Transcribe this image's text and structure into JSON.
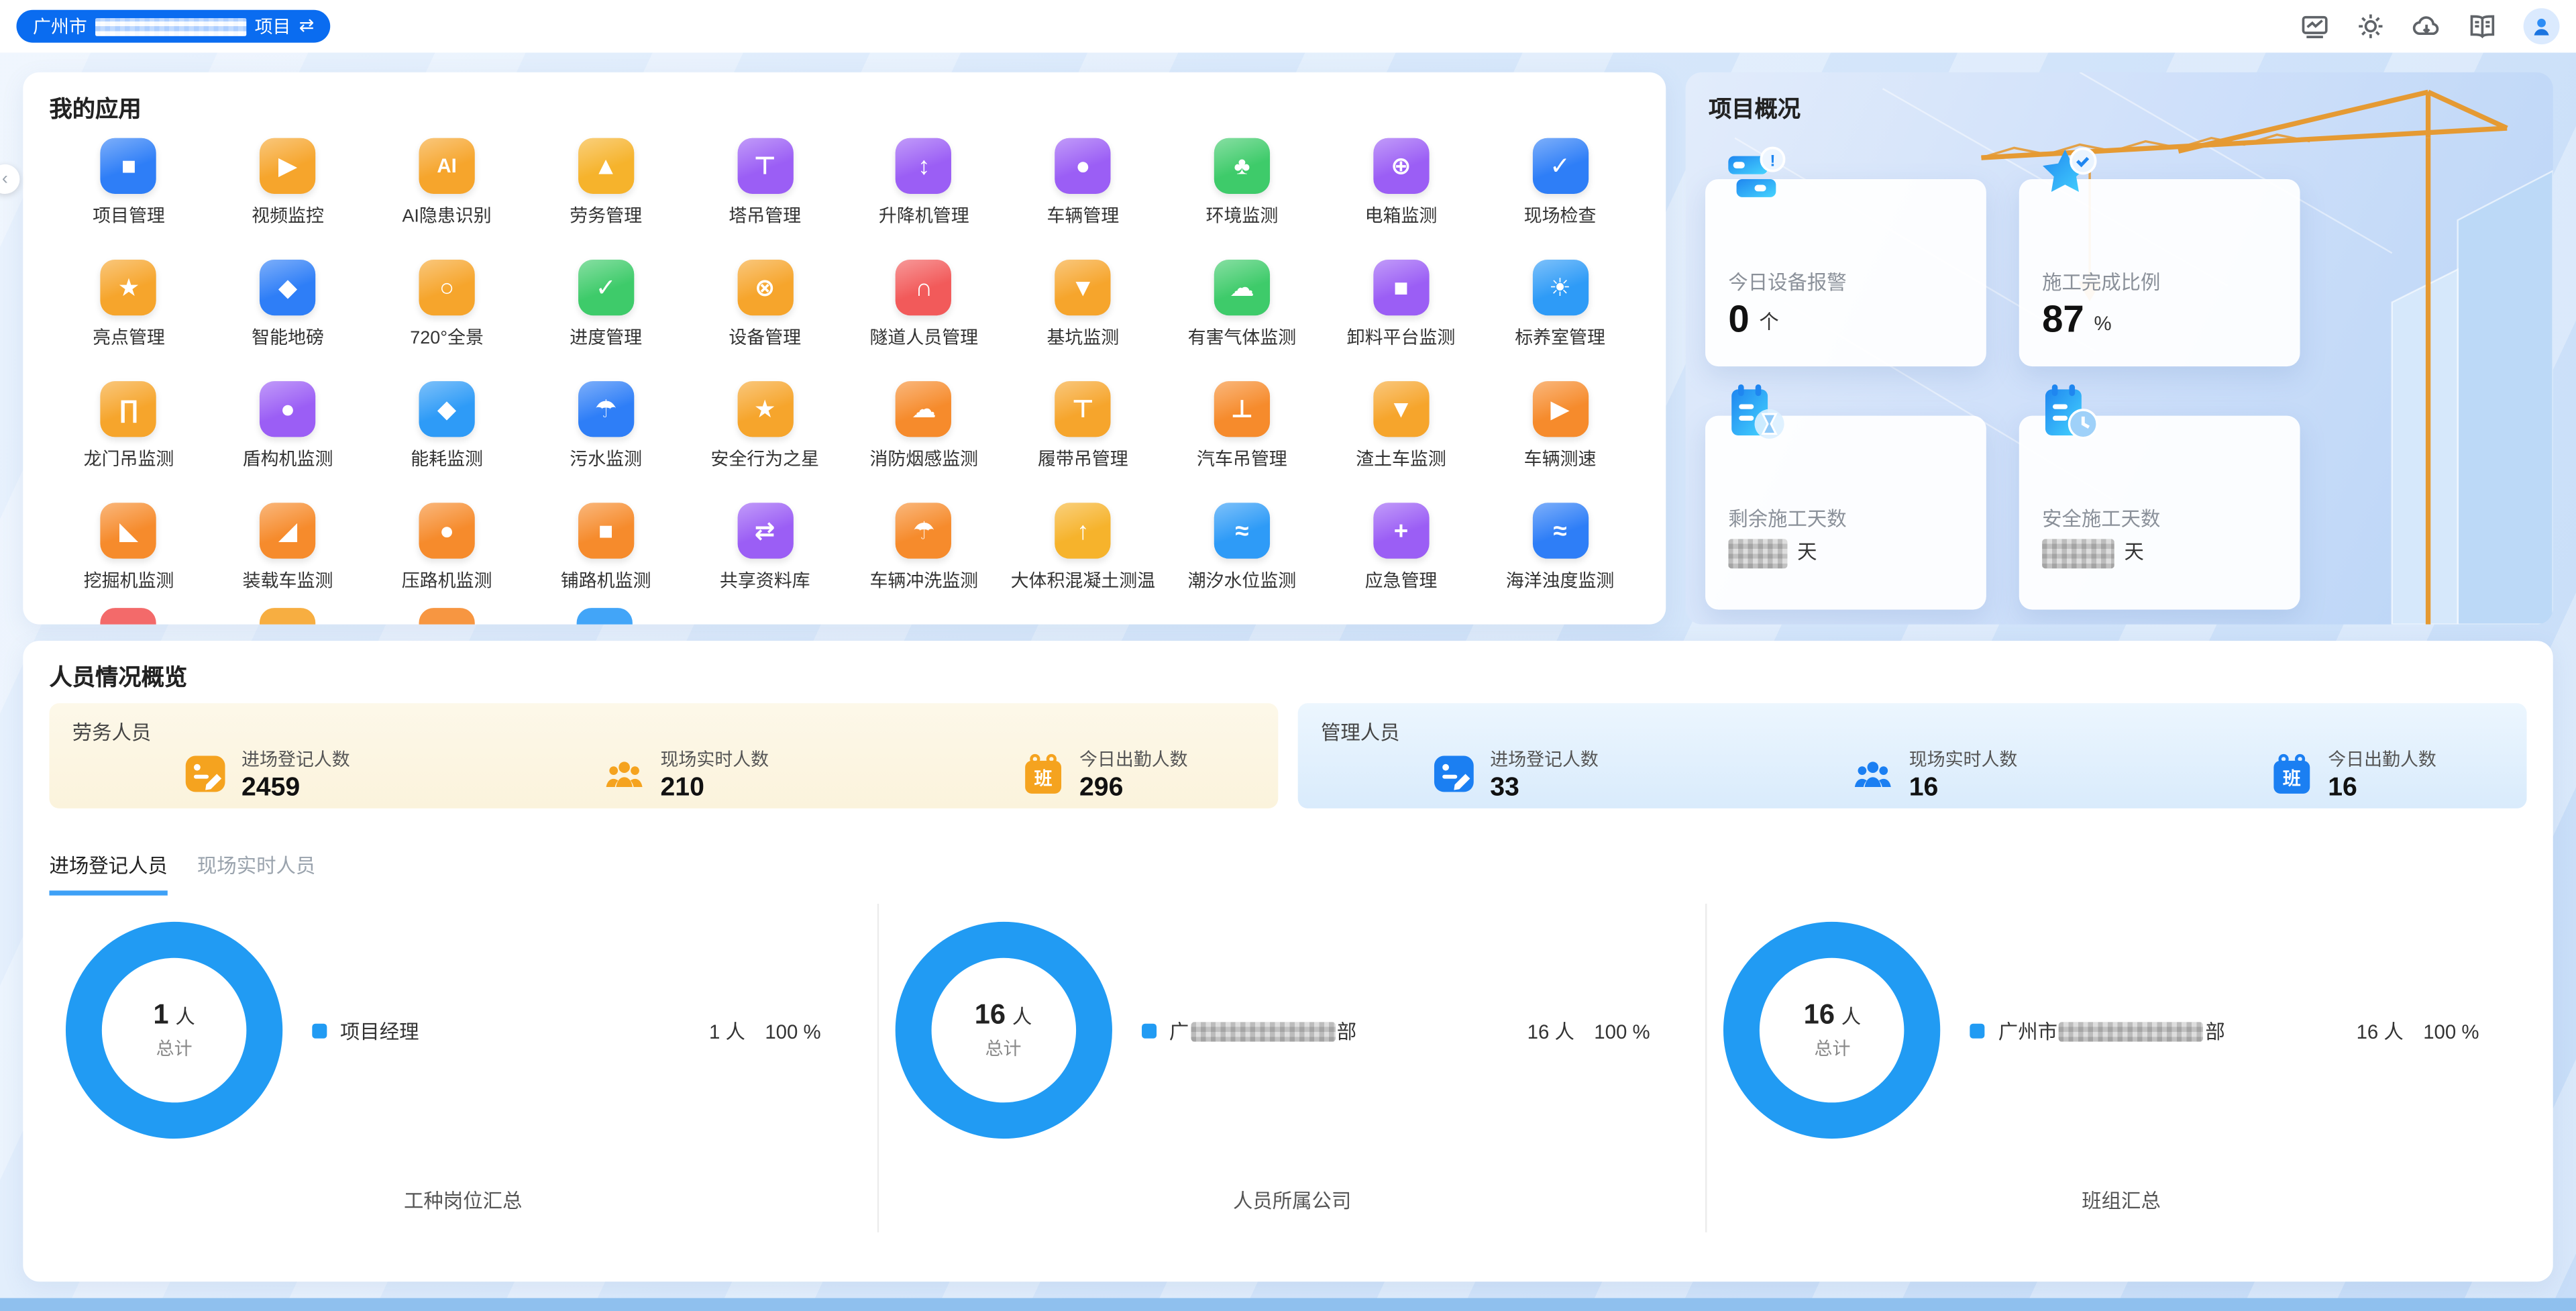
{
  "header": {
    "project_pill": {
      "prefix": "广州市",
      "masked_middle": true,
      "suffix": "项目",
      "swap_icon": "⇄",
      "bg": "#0a6cf0"
    },
    "icons": [
      "monitor-icon",
      "settings-icon",
      "cloud-download-icon",
      "manual-icon",
      "avatar"
    ]
  },
  "my_apps": {
    "title": "我的应用",
    "apps": [
      {
        "label": "项目管理",
        "color": "#2e7ef7",
        "glyph": "■"
      },
      {
        "label": "视频监控",
        "color": "#f6a52c",
        "glyph": "▶"
      },
      {
        "label": "AI隐患识别",
        "color": "#f6a52c",
        "glyph": "AI"
      },
      {
        "label": "劳务管理",
        "color": "#f6b32c",
        "glyph": "▲"
      },
      {
        "label": "塔吊管理",
        "color": "#9b5ef5",
        "glyph": "⊤"
      },
      {
        "label": "升降机管理",
        "color": "#9b5ef5",
        "glyph": "↕"
      },
      {
        "label": "车辆管理",
        "color": "#9b5ef5",
        "glyph": "●"
      },
      {
        "label": "环境监测",
        "color": "#3ecb6a",
        "glyph": "♣"
      },
      {
        "label": "电箱监测",
        "color": "#9b5ef5",
        "glyph": "⊕"
      },
      {
        "label": "现场检查",
        "color": "#2e7ef7",
        "glyph": "✓"
      },
      {
        "label": "亮点管理",
        "color": "#f6a52c",
        "glyph": "★"
      },
      {
        "label": "智能地磅",
        "color": "#2e7ef7",
        "glyph": "◆"
      },
      {
        "label": "720°全景",
        "color": "#f6a52c",
        "glyph": "○"
      },
      {
        "label": "进度管理",
        "color": "#3ecb6a",
        "glyph": "✓"
      },
      {
        "label": "设备管理",
        "color": "#f6a52c",
        "glyph": "⊗"
      },
      {
        "label": "隧道人员管理",
        "color": "#f25a5a",
        "glyph": "∩"
      },
      {
        "label": "基坑监测",
        "color": "#f6a52c",
        "glyph": "▼"
      },
      {
        "label": "有害气体监测",
        "color": "#3ecb6a",
        "glyph": "☁"
      },
      {
        "label": "卸料平台监测",
        "color": "#9b5ef5",
        "glyph": "■"
      },
      {
        "label": "标养室管理",
        "color": "#2e9bf7",
        "glyph": "☀"
      },
      {
        "label": "龙门吊监测",
        "color": "#f6a52c",
        "glyph": "∏"
      },
      {
        "label": "盾构机监测",
        "color": "#9b5ef5",
        "glyph": "●"
      },
      {
        "label": "能耗监测",
        "color": "#2e9bf7",
        "glyph": "◆"
      },
      {
        "label": "污水监测",
        "color": "#2e7ef7",
        "glyph": "☂"
      },
      {
        "label": "安全行为之星",
        "color": "#f6a52c",
        "glyph": "★"
      },
      {
        "label": "消防烟感监测",
        "color": "#f68b2c",
        "glyph": "☁"
      },
      {
        "label": "履带吊管理",
        "color": "#f6a52c",
        "glyph": "⊤"
      },
      {
        "label": "汽车吊管理",
        "color": "#f68b2c",
        "glyph": "⊥"
      },
      {
        "label": "渣土车监测",
        "color": "#f6a52c",
        "glyph": "▼"
      },
      {
        "label": "车辆测速",
        "color": "#f68b2c",
        "glyph": "▶"
      },
      {
        "label": "挖掘机监测",
        "color": "#f68b2c",
        "glyph": "◣"
      },
      {
        "label": "装载车监测",
        "color": "#f68b2c",
        "glyph": "◢"
      },
      {
        "label": "压路机监测",
        "color": "#f68b2c",
        "glyph": "●"
      },
      {
        "label": "铺路机监测",
        "color": "#f68b2c",
        "glyph": "■"
      },
      {
        "label": "共享资料库",
        "color": "#9b5ef5",
        "glyph": "⇄"
      },
      {
        "label": "车辆冲洗监测",
        "color": "#f68b2c",
        "glyph": "☂"
      },
      {
        "label": "大体积混凝土测温",
        "color": "#f6b32c",
        "glyph": "↑"
      },
      {
        "label": "潮汐水位监测",
        "color": "#2e9bf7",
        "glyph": "≈"
      },
      {
        "label": "应急管理",
        "color": "#9b5ef5",
        "glyph": "+"
      },
      {
        "label": "海洋浊度监测",
        "color": "#2e7ef7",
        "glyph": "≈"
      }
    ],
    "partial_next_row_colors": [
      "#f25a5a",
      "#f6a52c",
      "#f68b2c",
      "#2e9bf7"
    ]
  },
  "project_overview": {
    "title": "项目概况",
    "cards": [
      {
        "label": "今日设备报警",
        "value": "0",
        "unit": "个",
        "masked": false,
        "icon": "device-alarm-icon"
      },
      {
        "label": "施工完成比例",
        "value": "87",
        "unit": "%",
        "masked": false,
        "icon": "star-check-icon"
      },
      {
        "label": "剩余施工天数",
        "value": "",
        "unit": "天",
        "masked": true,
        "icon": "calendar-hourglass-icon"
      },
      {
        "label": "安全施工天数",
        "value": "",
        "unit": "天",
        "masked": true,
        "icon": "calendar-clock-icon"
      }
    ]
  },
  "personnel": {
    "title": "人员情况概览",
    "groups": [
      {
        "name": "劳务人员",
        "accent": "#f5a31f",
        "stats": [
          {
            "label": "进场登记人数",
            "value": "2459",
            "icon": "register-icon"
          },
          {
            "label": "现场实时人数",
            "value": "210",
            "icon": "people-icon"
          },
          {
            "label": "今日出勤人数",
            "value": "296",
            "icon": "attendance-calendar-icon",
            "badge": "班"
          }
        ]
      },
      {
        "name": "管理人员",
        "accent": "#1b7ff2",
        "stats": [
          {
            "label": "进场登记人数",
            "value": "33",
            "icon": "register-icon"
          },
          {
            "label": "现场实时人数",
            "value": "16",
            "icon": "people-icon"
          },
          {
            "label": "今日出勤人数",
            "value": "16",
            "icon": "attendance-calendar-icon",
            "badge": "班"
          }
        ]
      }
    ],
    "tabs": [
      {
        "label": "进场登记人员",
        "active": true
      },
      {
        "label": "现场实时人员",
        "active": false
      }
    ]
  },
  "chart_data": [
    {
      "type": "pie",
      "title": "工种岗位汇总",
      "center_value": "1",
      "center_unit": "人",
      "center_label": "总计",
      "ring_color": "#219bf3",
      "legend_position": "right",
      "series": [
        {
          "name": "项目经理",
          "name_masked": false,
          "value": 1,
          "value_text": "1 人",
          "percent_text": "100 %",
          "color": "#219bf3"
        }
      ]
    },
    {
      "type": "pie",
      "title": "人员所属公司",
      "center_value": "16",
      "center_unit": "人",
      "center_label": "总计",
      "ring_color": "#219bf3",
      "legend_position": "right",
      "series": [
        {
          "name_prefix": "广",
          "name_masked": true,
          "name_suffix": "部",
          "value": 16,
          "value_text": "16 人",
          "percent_text": "100 %",
          "color": "#219bf3"
        }
      ]
    },
    {
      "type": "pie",
      "title": "班组汇总",
      "center_value": "16",
      "center_unit": "人",
      "center_label": "总计",
      "ring_color": "#219bf3",
      "legend_position": "right",
      "series": [
        {
          "name_prefix": "广州市",
          "name_masked": true,
          "name_suffix": "部",
          "value": 16,
          "value_text": "16 人",
          "percent_text": "100 %",
          "color": "#219bf3"
        }
      ]
    }
  ]
}
